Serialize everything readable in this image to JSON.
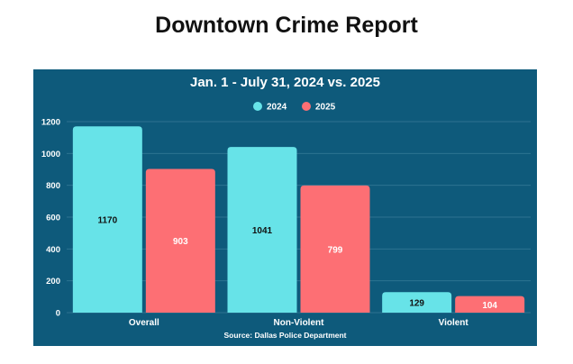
{
  "page": {
    "title": "Downtown Crime Report"
  },
  "chart_data": {
    "type": "bar",
    "title": "Jan. 1 - July 31, 2024 vs. 2025",
    "source": "Source: Dallas Police Department",
    "categories": [
      "Overall",
      "Non-Violent",
      "Violent"
    ],
    "series": [
      {
        "name": "2024",
        "values": [
          1170,
          1041,
          129
        ],
        "color": "#67e3e8",
        "label_color": "#111111"
      },
      {
        "name": "2025",
        "values": [
          903,
          799,
          104
        ],
        "color": "#fd6f74",
        "label_color": "#ffffff"
      }
    ],
    "ylim": [
      0,
      1200
    ],
    "yticks": [
      0,
      200,
      400,
      600,
      800,
      1000,
      1200
    ],
    "xlabel": "",
    "ylabel": "",
    "grid": true,
    "legend": "top-center",
    "background": "#0e5a7b"
  }
}
